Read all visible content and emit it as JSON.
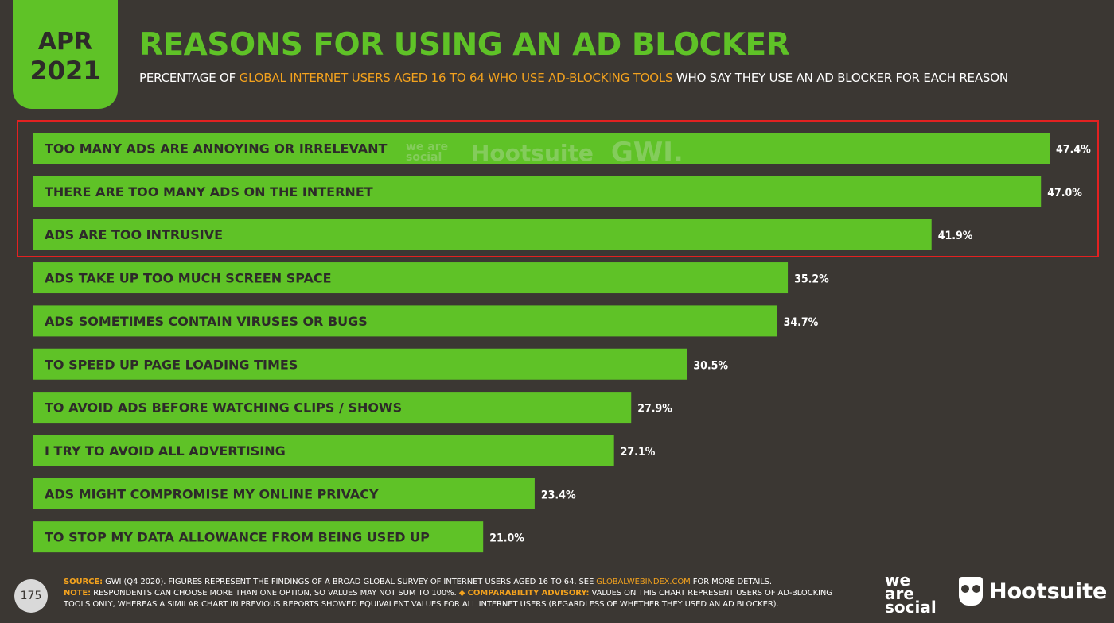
{
  "header": {
    "month": "APR",
    "year": "2021",
    "title": "REASONS FOR USING AN AD BLOCKER",
    "subtitle_pre": "PERCENTAGE OF ",
    "subtitle_highlight": "GLOBAL INTERNET USERS AGED 16 TO 64 WHO USE AD-BLOCKING TOOLS",
    "subtitle_post": " WHO SAY THEY USE AN AD BLOCKER FOR EACH REASON"
  },
  "watermark": {
    "wearesocial": "we are social",
    "hootsuite": "Hootsuite",
    "gwi": "GWI."
  },
  "colors": {
    "background": "#3b3733",
    "bar": "#5fc227",
    "accent": "#f3a21e",
    "highlight_box": "#e32121"
  },
  "chart_data": {
    "type": "bar",
    "orientation": "horizontal",
    "categories": [
      "TOO MANY ADS ARE ANNOYING OR IRRELEVANT",
      "THERE ARE TOO MANY ADS ON THE INTERNET",
      "ADS ARE TOO INTRUSIVE",
      "ADS TAKE UP TOO MUCH SCREEN SPACE",
      "ADS SOMETIMES CONTAIN VIRUSES OR BUGS",
      "TO SPEED UP PAGE LOADING TIMES",
      "TO AVOID ADS BEFORE WATCHING CLIPS / SHOWS",
      "I TRY TO AVOID ALL ADVERTISING",
      "ADS MIGHT COMPROMISE MY ONLINE PRIVACY",
      "TO STOP MY DATA ALLOWANCE FROM BEING USED UP"
    ],
    "values": [
      47.4,
      47.0,
      41.9,
      35.2,
      34.7,
      30.5,
      27.9,
      27.1,
      23.4,
      21.0
    ],
    "value_labels": [
      "47.4%",
      "47.0%",
      "41.9%",
      "35.2%",
      "34.7%",
      "30.5%",
      "27.9%",
      "27.1%",
      "23.4%",
      "21.0%"
    ],
    "highlighted_categories": 3,
    "grid": false,
    "legend": "none"
  },
  "footer": {
    "page_number": "175",
    "source_key": "SOURCE:",
    "source_text": " GWI (Q4 2020). FIGURES REPRESENT THE FINDINGS OF A BROAD GLOBAL SURVEY OF INTERNET USERS AGED 16 TO 64. SEE ",
    "source_link": "GLOBALWEBINDEX.COM",
    "source_end": " FOR MORE DETAILS.",
    "note_key": "NOTE:",
    "note_text": " RESPONDENTS CAN CHOOSE MORE THAN ONE OPTION, SO VALUES MAY NOT SUM TO 100%. ",
    "advisory_key": "◆ COMPARABILITY ADVISORY:",
    "advisory_text": " VALUES ON THIS CHART REPRESENT USERS OF AD-BLOCKING TOOLS ONLY, WHEREAS A SIMILAR CHART IN PREVIOUS REPORTS SHOWED EQUIVALENT VALUES FOR ALL INTERNET USERS (REGARDLESS OF WHETHER THEY USED AN AD BLOCKER).",
    "logo_wearesocial": "we are social",
    "logo_hootsuite": "Hootsuite"
  }
}
